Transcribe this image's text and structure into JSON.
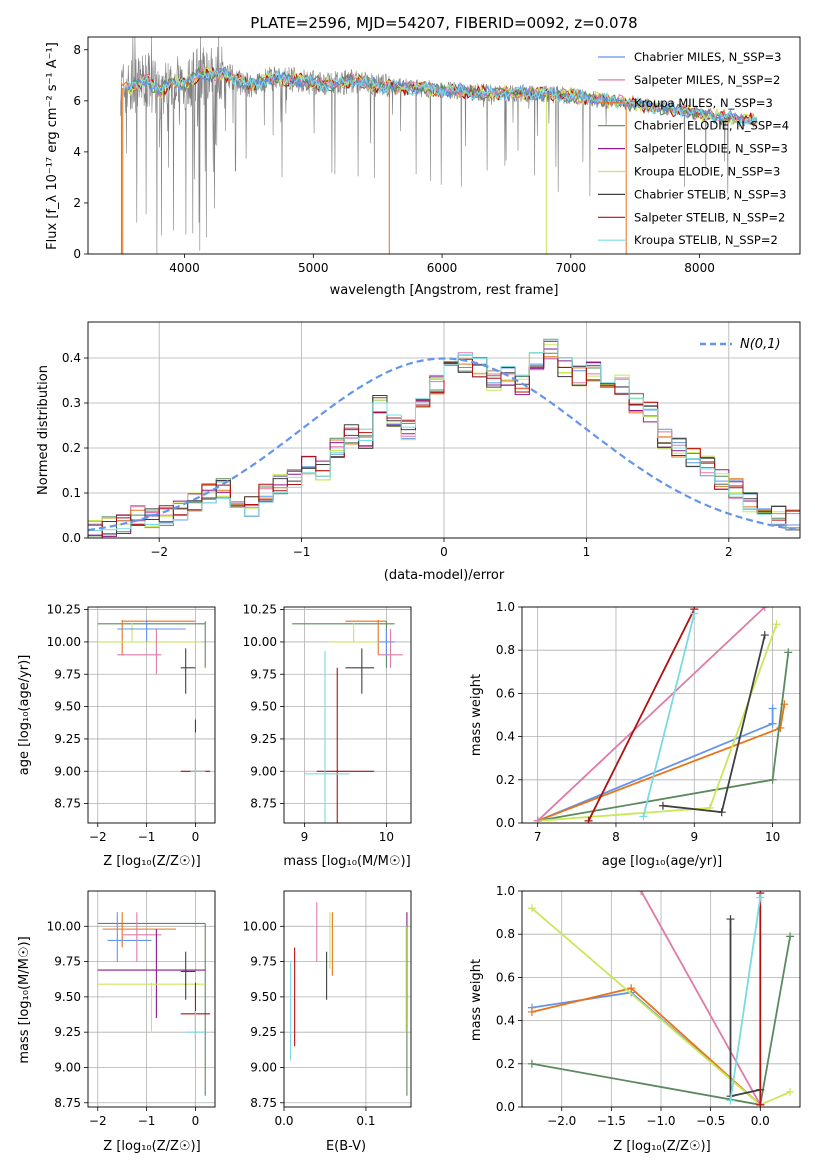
{
  "colors": {
    "cornflower": "#6495ed",
    "orange": "#e8731a",
    "green": "#5a8a5e",
    "dark": "#404040",
    "purple": "#8b1a8b",
    "yellowgreen": "#c8e85a",
    "pink": "#e07aa8",
    "red": "#b01010",
    "cyan": "#7adbe0",
    "gray": "#808080"
  },
  "spectrum": {
    "title": "PLATE=2596, MJD=54207, FIBERID=0092, z=0.078",
    "xlabel": "wavelength [Angstrom, rest frame]",
    "ylabel": "Flux [f_λ 10⁻¹⁷ erg cm⁻² s⁻¹ A⁻¹]",
    "xlim": [
      3250,
      8780
    ],
    "ylim": [
      0,
      8.5
    ],
    "xticks": [
      4000,
      5000,
      6000,
      7000,
      8000
    ],
    "yticks": [
      0,
      2,
      4,
      6,
      8
    ],
    "legend": [
      {
        "label": "Chabrier MILES, N_SSP=3",
        "color": "#6495ed"
      },
      {
        "label": "Salpeter MILES, N_SSP=2",
        "color": "#e07aa8"
      },
      {
        "label": "Kroupa MILES, N_SSP=3",
        "color": "#e8731a"
      },
      {
        "label": "Chabrier ELODIE, N_SSP=4",
        "color": "#5a8a5e"
      },
      {
        "label": "Salpeter ELODIE, N_SSP=3",
        "color": "#8b1a8b"
      },
      {
        "label": "Kroupa ELODIE, N_SSP=3",
        "color": "#c8e85a"
      },
      {
        "label": "Chabrier STELIB, N_SSP=3",
        "color": "#404040"
      },
      {
        "label": "Salpeter STELIB, N_SSP=2",
        "color": "#b01010"
      },
      {
        "label": "Kroupa STELIB, N_SSP=2",
        "color": "#7adbe0"
      }
    ],
    "model_trend": [
      [
        3600,
        6.5
      ],
      [
        3700,
        6.9
      ],
      [
        3800,
        6.3
      ],
      [
        3900,
        6.8
      ],
      [
        4000,
        6.6
      ],
      [
        4100,
        7.0
      ],
      [
        4300,
        7.1
      ],
      [
        4500,
        6.6
      ],
      [
        4700,
        6.9
      ],
      [
        4900,
        6.8
      ],
      [
        5100,
        6.6
      ],
      [
        5300,
        6.8
      ],
      [
        5500,
        6.6
      ],
      [
        5800,
        6.5
      ],
      [
        6100,
        6.4
      ],
      [
        6400,
        6.3
      ],
      [
        6700,
        6.3
      ],
      [
        7000,
        6.2
      ],
      [
        7300,
        6.0
      ],
      [
        7600,
        5.8
      ],
      [
        7900,
        5.6
      ],
      [
        8100,
        5.4
      ],
      [
        8300,
        5.3
      ],
      [
        8450,
        5.2
      ]
    ]
  },
  "histogram": {
    "xlabel": "(data-model)/error",
    "ylabel": "Normed distribution",
    "xlim": [
      -2.5,
      2.5
    ],
    "ylim": [
      0,
      0.48
    ],
    "xticks": [
      -2,
      -1,
      0,
      1,
      2
    ],
    "yticks": [
      0.0,
      0.1,
      0.2,
      0.3,
      0.4
    ],
    "legend_label": "N(0,1)",
    "bin_width": 0.1,
    "bin_start": -2.5,
    "base_heights": [
      0.02,
      0.025,
      0.03,
      0.05,
      0.045,
      0.05,
      0.06,
      0.08,
      0.1,
      0.11,
      0.09,
      0.07,
      0.1,
      0.12,
      0.13,
      0.16,
      0.15,
      0.2,
      0.23,
      0.22,
      0.3,
      0.27,
      0.24,
      0.3,
      0.34,
      0.37,
      0.39,
      0.38,
      0.35,
      0.36,
      0.34,
      0.39,
      0.42,
      0.38,
      0.36,
      0.37,
      0.33,
      0.34,
      0.3,
      0.28,
      0.22,
      0.2,
      0.18,
      0.16,
      0.13,
      0.11,
      0.08,
      0.07,
      0.05,
      0.04
    ]
  },
  "age_vs_z": {
    "xlabel": "Z [log₁₀(Z/Z☉)]",
    "ylabel": "age  [log₁₀(age/yr)]",
    "xlim": [
      -2.2,
      0.4
    ],
    "ylim": [
      8.6,
      10.27
    ],
    "xticks": [
      -2,
      -1,
      0
    ],
    "yticks": [
      8.75,
      9.0,
      9.25,
      9.5,
      9.75,
      10.0,
      10.25
    ],
    "crosses": [
      {
        "color": "#5a8a5e",
        "x": [
          -2.0,
          0.2
        ],
        "y": [
          10.14,
          10.14
        ],
        "vx": [
          0.2,
          0.2
        ],
        "vy": [
          9.8,
          10.16
        ]
      },
      {
        "color": "#e8731a",
        "x": [
          -1.5,
          0.0
        ],
        "y": [
          10.16,
          10.16
        ],
        "vx": [
          -1.5,
          -1.5
        ],
        "vy": [
          9.9,
          10.17
        ]
      },
      {
        "color": "#c8e85a",
        "x": [
          -2.0,
          0.1
        ],
        "y": [
          10.0,
          10.0
        ],
        "vx": [
          -1.3,
          -1.3
        ],
        "vy": [
          10.0,
          10.15
        ]
      },
      {
        "color": "#e07aa8",
        "x": [
          -1.6,
          -0.7
        ],
        "y": [
          9.9,
          9.9
        ],
        "vx": [
          -0.8,
          -0.8
        ],
        "vy": [
          9.75,
          10.1
        ]
      },
      {
        "color": "#6495ed",
        "x": [
          -1.6,
          -0.2
        ],
        "y": [
          10.1,
          10.1
        ],
        "vx": [
          -1.0,
          -1.0
        ],
        "vy": [
          10.0,
          10.17
        ]
      },
      {
        "color": "#404040",
        "x": [
          -0.3,
          0.0
        ],
        "y": [
          9.8,
          9.8
        ],
        "vx": [
          -0.2,
          -0.2
        ],
        "vy": [
          9.6,
          9.95
        ]
      },
      {
        "color": "#b01010",
        "x": [
          -0.3,
          0.3
        ],
        "y": [
          9.0,
          9.0
        ],
        "vx": [
          0.0,
          0.0
        ],
        "vy": [
          8.6,
          9.4
        ]
      },
      {
        "color": "#7adbe0",
        "x": [
          -0.1,
          0.2
        ],
        "y": [
          9.0,
          9.0
        ],
        "vx": [
          0.0,
          0.0
        ],
        "vy": [
          8.6,
          9.3
        ]
      }
    ]
  },
  "age_vs_mass": {
    "xlabel": "mass [log₁₀(M/M☉)]",
    "ylabel": "",
    "xlim": [
      8.75,
      10.3
    ],
    "ylim": [
      8.6,
      10.27
    ],
    "xticks": [
      9,
      10
    ],
    "yticks": [
      8.75,
      9.0,
      9.25,
      9.5,
      9.75,
      10.0,
      10.25
    ],
    "crosses": [
      {
        "color": "#5a8a5e",
        "x": [
          8.85,
          10.1
        ],
        "y": [
          10.14,
          10.14
        ],
        "vx": [
          10.0,
          10.0
        ],
        "vy": [
          9.8,
          10.16
        ]
      },
      {
        "color": "#e8731a",
        "x": [
          9.5,
          10.0
        ],
        "y": [
          10.16,
          10.16
        ],
        "vx": [
          9.9,
          9.9
        ],
        "vy": [
          9.9,
          10.17
        ]
      },
      {
        "color": "#c8e85a",
        "x": [
          9.3,
          10.1
        ],
        "y": [
          10.0,
          10.0
        ],
        "vx": [
          9.6,
          9.6
        ],
        "vy": [
          10.0,
          10.15
        ]
      },
      {
        "color": "#e07aa8",
        "x": [
          9.9,
          10.2
        ],
        "y": [
          9.9,
          9.9
        ],
        "vx": [
          10.05,
          10.05
        ],
        "vy": [
          9.8,
          10.1
        ]
      },
      {
        "color": "#6495ed",
        "x": [
          9.9,
          10.1
        ],
        "y": [
          10.0,
          10.0
        ],
        "vx": [
          10.0,
          10.0
        ],
        "vy": [
          9.9,
          10.1
        ]
      },
      {
        "color": "#404040",
        "x": [
          9.5,
          9.85
        ],
        "y": [
          9.8,
          9.8
        ],
        "vx": [
          9.7,
          9.7
        ],
        "vy": [
          9.6,
          9.95
        ]
      },
      {
        "color": "#b01010",
        "x": [
          9.15,
          9.85
        ],
        "y": [
          9.0,
          9.0
        ],
        "vx": [
          9.4,
          9.4
        ],
        "vy": [
          8.6,
          9.8
        ]
      },
      {
        "color": "#7adbe0",
        "x": [
          9.0,
          9.55
        ],
        "y": [
          8.98,
          8.98
        ],
        "vx": [
          9.25,
          9.25
        ],
        "vy": [
          8.6,
          9.93
        ]
      }
    ]
  },
  "mw_vs_age": {
    "xlabel": "age  [log₁₀(age/yr)]",
    "ylabel": "mass weight",
    "xlim": [
      6.8,
      10.35
    ],
    "ylim": [
      0,
      1.0
    ],
    "xticks": [
      7,
      8,
      9,
      10
    ],
    "yticks": [
      0.0,
      0.2,
      0.4,
      0.6,
      0.8,
      1.0
    ],
    "series": [
      {
        "color": "#6495ed",
        "x": [
          7.0,
          10.0,
          10.0
        ],
        "y": [
          0.01,
          0.46,
          0.53
        ]
      },
      {
        "color": "#e8731a",
        "x": [
          7.0,
          10.1,
          10.15
        ],
        "y": [
          0.01,
          0.44,
          0.55
        ]
      },
      {
        "color": "#5a8a5e",
        "x": [
          7.0,
          10.0,
          10.2
        ],
        "y": [
          0.01,
          0.2,
          0.79
        ]
      },
      {
        "color": "#c8e85a",
        "x": [
          7.0,
          9.2,
          10.05
        ],
        "y": [
          0.01,
          0.07,
          0.92
        ]
      },
      {
        "color": "#e07aa8",
        "x": [
          7.0,
          9.9
        ],
        "y": [
          0.01,
          1.0
        ]
      },
      {
        "color": "#404040",
        "x": [
          8.6,
          9.35,
          9.9
        ],
        "y": [
          0.08,
          0.05,
          0.87
        ]
      },
      {
        "color": "#b01010",
        "x": [
          7.65,
          9.0
        ],
        "y": [
          0.01,
          0.99
        ]
      },
      {
        "color": "#7adbe0",
        "x": [
          8.35,
          9.0
        ],
        "y": [
          0.03,
          0.97
        ]
      }
    ]
  },
  "mass_vs_z": {
    "xlabel": "Z [log₁₀(Z/Z☉)]",
    "ylabel": "mass [log₁₀(M/M☉)]",
    "xlim": [
      -2.2,
      0.4
    ],
    "ylim": [
      8.72,
      10.25
    ],
    "xticks": [
      -2,
      -1,
      0
    ],
    "yticks": [
      8.75,
      9.0,
      9.25,
      9.5,
      9.75,
      10.0
    ],
    "crosses": [
      {
        "color": "#5a8a5e",
        "x": [
          -2.0,
          0.2
        ],
        "y": [
          10.02,
          10.02
        ],
        "vx": [
          0.2,
          0.2
        ],
        "vy": [
          8.8,
          10.02
        ]
      },
      {
        "color": "#e8731a",
        "x": [
          -1.9,
          -0.4
        ],
        "y": [
          9.98,
          9.98
        ],
        "vx": [
          -1.5,
          -1.5
        ],
        "vy": [
          9.85,
          10.1
        ]
      },
      {
        "color": "#6495ed",
        "x": [
          -1.8,
          -0.9
        ],
        "y": [
          9.9,
          9.9
        ],
        "vx": [
          -1.6,
          -1.6
        ],
        "vy": [
          9.75,
          10.1
        ]
      },
      {
        "color": "#e07aa8",
        "x": [
          -1.5,
          -0.7
        ],
        "y": [
          9.94,
          9.94
        ],
        "vx": [
          -1.2,
          -1.2
        ],
        "vy": [
          9.75,
          10.1
        ]
      },
      {
        "color": "#8b1a8b",
        "x": [
          -2.0,
          0.2
        ],
        "y": [
          9.69,
          9.69
        ],
        "vx": [
          -0.8,
          -0.8
        ],
        "vy": [
          9.35,
          9.98
        ]
      },
      {
        "color": "#c8e85a",
        "x": [
          -2.0,
          0.2
        ],
        "y": [
          9.59,
          9.59
        ],
        "vx": [
          -0.9,
          -0.9
        ],
        "vy": [
          9.25,
          9.6
        ]
      },
      {
        "color": "#404040",
        "x": [
          -0.3,
          0.0
        ],
        "y": [
          9.68,
          9.68
        ],
        "vx": [
          -0.2,
          -0.2
        ],
        "vy": [
          9.48,
          9.82
        ]
      },
      {
        "color": "#b01010",
        "x": [
          -0.3,
          0.3
        ],
        "y": [
          9.38,
          9.38
        ],
        "vx": [
          0.0,
          0.0
        ],
        "vy": [
          9.2,
          9.6
        ]
      },
      {
        "color": "#7adbe0",
        "x": [
          -0.2,
          0.2
        ],
        "y": [
          9.25,
          9.25
        ],
        "vx": [
          0.0,
          0.0
        ],
        "vy": [
          9.05,
          9.4
        ]
      }
    ]
  },
  "mass_vs_ebv": {
    "xlabel": "E(B-V)",
    "ylabel": "",
    "xlim": [
      0.0,
      0.155
    ],
    "ylim": [
      8.72,
      10.25
    ],
    "xticks": [
      0.0,
      0.1
    ],
    "xticklabels": [
      "0.0",
      "0.1"
    ],
    "yticks": [
      8.75,
      9.0,
      9.25,
      9.5,
      9.75,
      10.0
    ],
    "bars": [
      {
        "color": "#7adbe0",
        "x": 0.008,
        "y0": 9.05,
        "y1": 9.75
      },
      {
        "color": "#b01010",
        "x": 0.013,
        "y0": 9.15,
        "y1": 9.85
      },
      {
        "color": "#e07aa8",
        "x": 0.04,
        "y0": 9.75,
        "y1": 10.17
      },
      {
        "color": "#404040",
        "x": 0.052,
        "y0": 9.48,
        "y1": 9.82
      },
      {
        "color": "#c8e85a",
        "x": 0.056,
        "y0": 9.7,
        "y1": 10.1
      },
      {
        "color": "#e8731a",
        "x": 0.059,
        "y0": 9.65,
        "y1": 10.1
      },
      {
        "color": "#8b1a8b",
        "x": 0.15,
        "y0": 9.35,
        "y1": 10.1
      },
      {
        "color": "#5a8a5e",
        "x": 0.15,
        "y0": 8.8,
        "y1": 10.0
      },
      {
        "color": "#c8e85a",
        "x": 0.149,
        "y0": 9.25,
        "y1": 10.0
      }
    ]
  },
  "mw_vs_z": {
    "xlabel": "Z [log₁₀(Z/Z☉)]",
    "ylabel": "mass weight",
    "xlim": [
      -2.4,
      0.4
    ],
    "ylim": [
      0,
      1.0
    ],
    "xticks": [
      -2.0,
      -1.5,
      -1.0,
      -0.5,
      0.0
    ],
    "xticklabels": [
      "−2.0",
      "−1.5",
      "−1.0",
      "−0.5",
      "0.0"
    ],
    "yticks": [
      0.0,
      0.2,
      0.4,
      0.6,
      0.8,
      1.0
    ],
    "series": [
      {
        "color": "#6495ed",
        "x": [
          -2.3,
          -1.3,
          0.0
        ],
        "y": [
          0.46,
          0.53,
          0.01
        ]
      },
      {
        "color": "#e8731a",
        "x": [
          -2.3,
          -1.3,
          0.0
        ],
        "y": [
          0.44,
          0.55,
          0.01
        ]
      },
      {
        "color": "#5a8a5e",
        "x": [
          -2.3,
          0.0,
          0.3
        ],
        "y": [
          0.2,
          0.01,
          0.79
        ]
      },
      {
        "color": "#c8e85a",
        "x": [
          -2.3,
          0.0,
          0.3
        ],
        "y": [
          0.92,
          0.01,
          0.07
        ]
      },
      {
        "color": "#e07aa8",
        "x": [
          -1.2,
          0.0
        ],
        "y": [
          1.0,
          0.01
        ]
      },
      {
        "color": "#404040",
        "x": [
          -0.3,
          -0.3,
          0.0
        ],
        "y": [
          0.87,
          0.05,
          0.08
        ]
      },
      {
        "color": "#b01010",
        "x": [
          0.0,
          0.0
        ],
        "y": [
          0.99,
          0.01
        ]
      },
      {
        "color": "#7adbe0",
        "x": [
          -0.3,
          0.0
        ],
        "y": [
          0.03,
          0.97
        ]
      }
    ]
  }
}
